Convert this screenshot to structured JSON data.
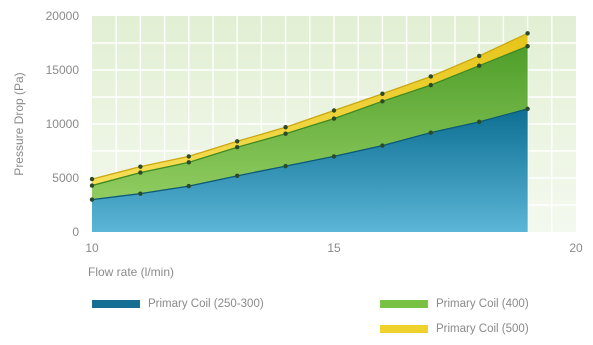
{
  "chart_data": {
    "type": "area",
    "stacked": true,
    "x": [
      10,
      11,
      12,
      13,
      14,
      15,
      16,
      17,
      18,
      19
    ],
    "xlim": [
      10,
      20
    ],
    "ylim": [
      0,
      20000
    ],
    "xticks": [
      "10",
      "15",
      "20"
    ],
    "yticks": [
      "0",
      "5000",
      "10000",
      "15000",
      "20000"
    ],
    "xlabel": "Flow rate (l/min)",
    "ylabel": "Pressure Drop (Pa)",
    "grid": true,
    "legend_position": "bottom",
    "series": [
      {
        "name": "Primary Coil (250-300)",
        "color": "#1f8fb2",
        "values": [
          3000,
          3550,
          4250,
          5200,
          6100,
          7000,
          8000,
          9200,
          10200,
          11400
        ]
      },
      {
        "name": "Primary Coil (400)",
        "color": "#79c142",
        "values": [
          4300,
          5500,
          6450,
          7850,
          9100,
          10500,
          12100,
          13600,
          15400,
          17200
        ]
      },
      {
        "name": "Primary Coil (500)",
        "color": "#f0d22c",
        "values": [
          4900,
          6050,
          7000,
          8400,
          9700,
          11250,
          12800,
          14400,
          16300,
          18400
        ]
      }
    ]
  }
}
